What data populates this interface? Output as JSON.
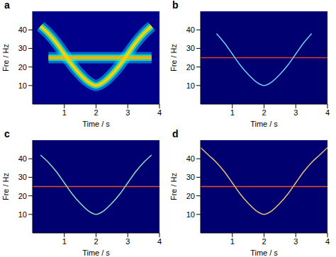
{
  "chart_data": [
    {
      "type": "line",
      "title": "a",
      "xlabel": "Time / s",
      "ylabel": "Fre / Hz",
      "x": [
        0,
        0.25,
        0.5,
        0.75,
        1,
        1.25,
        1.5,
        1.75,
        2,
        2.25,
        2.5,
        2.75,
        3,
        3.25,
        3.5,
        3.75,
        4
      ],
      "xlim": [
        0,
        4
      ],
      "xticks": [
        1,
        2,
        3,
        4
      ],
      "ylim": [
        0,
        50
      ],
      "yticks": [
        10,
        20,
        30,
        40
      ],
      "grid": false,
      "series": [
        {
          "color": "#ffb000",
          "values": [
            null,
            null,
            25,
            25,
            25,
            25,
            25,
            25,
            25,
            25,
            25,
            25,
            25,
            25,
            25,
            25,
            null
          ]
        },
        {
          "color": "#ffd000",
          "values": [
            null,
            42,
            38,
            33,
            27,
            21,
            16,
            12,
            10,
            12,
            16,
            21,
            27,
            33,
            38,
            42,
            null
          ]
        }
      ]
    },
    {
      "type": "line",
      "title": "b",
      "xlabel": "Time / s",
      "ylabel": "Fre / Hz",
      "x": [
        0,
        0.25,
        0.5,
        0.75,
        1,
        1.25,
        1.5,
        1.75,
        2,
        2.25,
        2.5,
        2.75,
        3,
        3.25,
        3.5,
        3.75,
        4
      ],
      "xlim": [
        0,
        4
      ],
      "xticks": [
        1,
        2,
        3,
        4
      ],
      "ylim": [
        0,
        50
      ],
      "yticks": [
        10,
        20,
        30,
        40
      ],
      "grid": false,
      "series": [
        {
          "color": "#d8401c",
          "values": [
            25,
            25,
            25,
            25,
            25,
            25,
            25,
            25,
            25,
            25,
            25,
            25,
            25,
            25,
            25,
            25,
            25
          ]
        },
        {
          "color": "#6fd0f0",
          "values": [
            null,
            null,
            38,
            33,
            27,
            21,
            16,
            12,
            10,
            12,
            16,
            21,
            27,
            33,
            38,
            null,
            null
          ]
        }
      ]
    },
    {
      "type": "line",
      "title": "c",
      "xlabel": "Time / s",
      "ylabel": "Fre / Hz",
      "x": [
        0,
        0.25,
        0.5,
        0.75,
        1,
        1.25,
        1.5,
        1.75,
        2,
        2.25,
        2.5,
        2.75,
        3,
        3.25,
        3.5,
        3.75,
        4
      ],
      "xlim": [
        0,
        4
      ],
      "xticks": [
        1,
        2,
        3,
        4
      ],
      "ylim": [
        0,
        50
      ],
      "yticks": [
        10,
        20,
        30,
        40
      ],
      "grid": false,
      "series": [
        {
          "color": "#e0501c",
          "values": [
            25,
            25,
            25,
            25,
            25,
            25,
            25,
            25,
            25,
            25,
            25,
            25,
            25,
            25,
            25,
            25,
            25
          ]
        },
        {
          "color": "#8fe0c0",
          "values": [
            null,
            42,
            38,
            33,
            27,
            21,
            16,
            12,
            10,
            12,
            16,
            21,
            27,
            33,
            38,
            42,
            null
          ]
        }
      ]
    },
    {
      "type": "line",
      "title": "d",
      "xlabel": "Time / s",
      "ylabel": "Fre / Hz",
      "x": [
        0,
        0.25,
        0.5,
        0.75,
        1,
        1.25,
        1.5,
        1.75,
        2,
        2.25,
        2.5,
        2.75,
        3,
        3.25,
        3.5,
        3.75,
        4
      ],
      "xlim": [
        0,
        4
      ],
      "xticks": [
        1,
        2,
        3,
        4
      ],
      "ylim": [
        0,
        50
      ],
      "yticks": [
        10,
        20,
        30,
        40
      ],
      "grid": false,
      "series": [
        {
          "color": "#e8501c",
          "values": [
            25,
            25,
            25,
            25,
            25,
            25,
            25,
            25,
            25,
            25,
            25,
            25,
            25,
            25,
            25,
            25,
            25
          ]
        },
        {
          "color": "#e8c070",
          "values": [
            46,
            42,
            38,
            33,
            27,
            21,
            16,
            12,
            10,
            12,
            16,
            21,
            27,
            33,
            38,
            42,
            46
          ]
        }
      ]
    }
  ]
}
